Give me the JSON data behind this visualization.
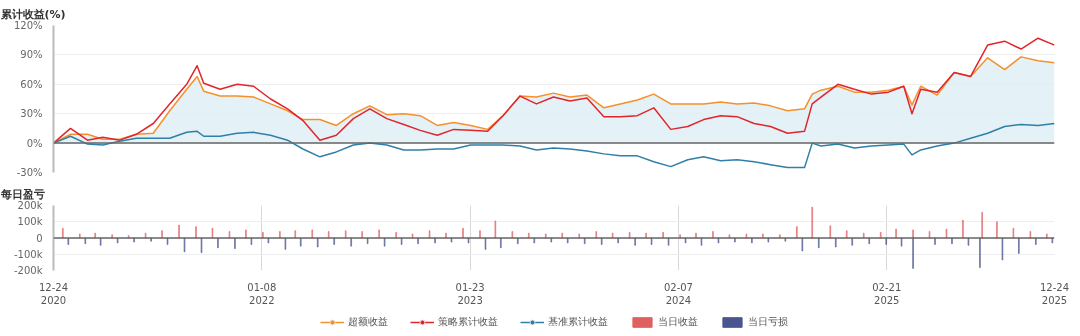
{
  "chart_data": [
    {
      "type": "line",
      "title": "累计收益(%)",
      "x": [
        "2020-12-24",
        "2021-01-24",
        "2021-02-24",
        "2021-03-24",
        "2021-04-24",
        "2021-05-24",
        "2021-06-24",
        "2021-07-24",
        "2021-08-24",
        "2021-09-12",
        "2021-09-24",
        "2021-10-24",
        "2021-11-24",
        "2021-12-24",
        "2022-01-24",
        "2022-02-24",
        "2022-03-24",
        "2022-04-24",
        "2022-05-24",
        "2022-06-24",
        "2022-07-24",
        "2022-08-24",
        "2022-09-24",
        "2022-10-24",
        "2022-11-24",
        "2022-12-24",
        "2023-01-24",
        "2023-02-24",
        "2023-03-24",
        "2023-04-24",
        "2023-05-24",
        "2023-06-24",
        "2023-07-24",
        "2023-08-24",
        "2023-09-24",
        "2023-10-24",
        "2023-11-24",
        "2023-12-24",
        "2024-01-24",
        "2024-02-24",
        "2024-03-24",
        "2024-04-24",
        "2024-05-24",
        "2024-06-24",
        "2024-07-24",
        "2024-08-24",
        "2024-09-24",
        "2024-10-08",
        "2024-10-24",
        "2024-11-24",
        "2024-12-24",
        "2025-01-24",
        "2025-02-24",
        "2025-03-24",
        "2025-04-08",
        "2025-04-24",
        "2025-05-24",
        "2025-06-24",
        "2025-07-24",
        "2025-08-24",
        "2025-09-24",
        "2025-10-24",
        "2025-11-24",
        "2025-12-24"
      ],
      "series": [
        {
          "name": "超额收益",
          "type": "area",
          "color": "#f5902a",
          "values": [
            0,
            9,
            9,
            4,
            4,
            9,
            10,
            33,
            55,
            68,
            53,
            48,
            48,
            47,
            40,
            33,
            24,
            24,
            18,
            30,
            38,
            29,
            30,
            28,
            18,
            21,
            18,
            14,
            28,
            48,
            47,
            51,
            47,
            49,
            36,
            40,
            44,
            50,
            40,
            40,
            40,
            42,
            40,
            41,
            38,
            33,
            35,
            50,
            54,
            58,
            52,
            52,
            54,
            58,
            39,
            58,
            49,
            72,
            68,
            87,
            75,
            88,
            84,
            82
          ]
        },
        {
          "name": "策略累计收益",
          "color": "#e0262b",
          "values": [
            0,
            15,
            3,
            6,
            3,
            9,
            20,
            40,
            60,
            79,
            61,
            55,
            60,
            58,
            45,
            35,
            23,
            3,
            8,
            25,
            35,
            25,
            19,
            13,
            8,
            14,
            13,
            12,
            28,
            48,
            40,
            47,
            43,
            46,
            27,
            27,
            28,
            36,
            14,
            17,
            24,
            28,
            27,
            20,
            17,
            10,
            12,
            40,
            47,
            60,
            55,
            50,
            52,
            58,
            30,
            55,
            52,
            72,
            68,
            100,
            104,
            96,
            107,
            100
          ]
        },
        {
          "name": "基准累计收益",
          "color": "#2f7fa8",
          "values": [
            0,
            7,
            -1,
            -2,
            2,
            5,
            5,
            5,
            11,
            12,
            7,
            7,
            10,
            11,
            8,
            3,
            -6,
            -14,
            -9,
            -2,
            0,
            -2,
            -7,
            -7,
            -6,
            -6,
            -2,
            -2,
            -2,
            -3,
            -7,
            -5,
            -6,
            -8,
            -11,
            -13,
            -13,
            -19,
            -24,
            -17,
            -14,
            -18,
            -17,
            -19,
            -22,
            -25,
            -25,
            0,
            -3,
            -1,
            -5,
            -3,
            -2,
            -1,
            -12,
            -7,
            -3,
            0,
            5,
            10,
            17,
            19,
            18,
            20
          ]
        }
      ],
      "xlim": [
        "2020-12-24",
        "2025-12-24"
      ],
      "xticks": [
        {
          "value": "2020-12-24",
          "label": null
        },
        {
          "value": "2022-01-08",
          "label": null
        },
        {
          "value": "2023-01-23",
          "label": null
        },
        {
          "value": "2024-02-07",
          "label": null
        },
        {
          "value": "2025-02-21",
          "label": null
        },
        {
          "value": "2025-12-24",
          "label": null
        }
      ],
      "ylim": [
        -30,
        120
      ],
      "yticks": [
        {
          "value": -30,
          "label": "-30%"
        },
        {
          "value": 0,
          "label": "0%"
        },
        {
          "value": 30,
          "label": "30%"
        },
        {
          "value": 60,
          "label": "60%"
        },
        {
          "value": 90,
          "label": "90%"
        },
        {
          "value": 120,
          "label": "120%"
        }
      ],
      "grid": "y",
      "tick_labels": "y",
      "legend": "bottom"
    },
    {
      "type": "bar",
      "title": "每日盈亏",
      "series": [
        {
          "name": "当日收益",
          "color": "#e06060",
          "x": [
            "2021-01-10",
            "2021-02-10",
            "2021-03-10",
            "2021-04-10",
            "2021-05-10",
            "2021-06-10",
            "2021-07-10",
            "2021-08-10",
            "2021-09-10",
            "2021-10-10",
            "2021-11-10",
            "2021-12-10",
            "2022-01-10",
            "2022-02-10",
            "2022-03-10",
            "2022-04-10",
            "2022-05-10",
            "2022-06-10",
            "2022-07-10",
            "2022-08-10",
            "2022-09-10",
            "2022-10-10",
            "2022-11-10",
            "2022-12-10",
            "2023-01-10",
            "2023-02-10",
            "2023-03-10",
            "2023-04-10",
            "2023-05-10",
            "2023-06-10",
            "2023-07-10",
            "2023-08-10",
            "2023-09-10",
            "2023-10-10",
            "2023-11-10",
            "2023-12-10",
            "2024-01-10",
            "2024-02-10",
            "2024-03-10",
            "2024-04-10",
            "2024-05-10",
            "2024-06-10",
            "2024-07-10",
            "2024-08-10",
            "2024-09-10",
            "2024-10-08",
            "2024-11-10",
            "2024-12-10",
            "2025-01-10",
            "2025-02-10",
            "2025-03-10",
            "2025-04-10",
            "2025-05-10",
            "2025-06-10",
            "2025-07-10",
            "2025-08-14",
            "2025-09-10",
            "2025-10-10",
            "2025-11-10",
            "2025-12-10"
          ],
          "values": [
            60000,
            25000,
            30000,
            20000,
            15000,
            30000,
            45000,
            80000,
            70000,
            60000,
            40000,
            50000,
            35000,
            40000,
            45000,
            50000,
            40000,
            45000,
            40000,
            50000,
            35000,
            25000,
            45000,
            30000,
            60000,
            45000,
            105000,
            40000,
            30000,
            25000,
            30000,
            25000,
            40000,
            30000,
            35000,
            30000,
            35000,
            20000,
            30000,
            40000,
            20000,
            25000,
            25000,
            20000,
            70000,
            190000,
            75000,
            45000,
            30000,
            35000,
            55000,
            50000,
            40000,
            55000,
            110000,
            158000,
            100000,
            60000,
            40000,
            25000
          ]
        },
        {
          "name": "当日亏损",
          "color": "#4a5590",
          "x": [
            "2021-01-20",
            "2021-02-20",
            "2021-03-20",
            "2021-04-20",
            "2021-05-20",
            "2021-06-20",
            "2021-07-20",
            "2021-08-20",
            "2021-09-20",
            "2021-10-20",
            "2021-11-20",
            "2021-12-20",
            "2022-01-20",
            "2022-02-20",
            "2022-03-20",
            "2022-04-20",
            "2022-05-20",
            "2022-06-20",
            "2022-07-20",
            "2022-08-20",
            "2022-09-20",
            "2022-10-20",
            "2022-11-20",
            "2022-12-20",
            "2023-01-20",
            "2023-02-20",
            "2023-03-20",
            "2023-04-20",
            "2023-05-20",
            "2023-06-20",
            "2023-07-20",
            "2023-08-20",
            "2023-09-20",
            "2023-10-20",
            "2023-11-20",
            "2023-12-20",
            "2024-01-20",
            "2024-02-20",
            "2024-03-20",
            "2024-04-20",
            "2024-05-20",
            "2024-06-20",
            "2024-07-20",
            "2024-08-20",
            "2024-09-20",
            "2024-10-20",
            "2024-11-20",
            "2024-12-20",
            "2025-01-20",
            "2025-02-20",
            "2025-03-20",
            "2025-04-10",
            "2025-05-20",
            "2025-06-20",
            "2025-07-20",
            "2025-08-10",
            "2025-09-20",
            "2025-10-20",
            "2025-11-20",
            "2025-12-20"
          ],
          "values": [
            -40000,
            -35000,
            -45000,
            -30000,
            -25000,
            -20000,
            -40000,
            -85000,
            -90000,
            -60000,
            -65000,
            -40000,
            -30000,
            -70000,
            -50000,
            -55000,
            -40000,
            -50000,
            -35000,
            -50000,
            -40000,
            -35000,
            -30000,
            -25000,
            -30000,
            -70000,
            -60000,
            -35000,
            -30000,
            -25000,
            -30000,
            -35000,
            -40000,
            -30000,
            -45000,
            -40000,
            -45000,
            -30000,
            -45000,
            -30000,
            -25000,
            -30000,
            -25000,
            -20000,
            -80000,
            -60000,
            -55000,
            -45000,
            -35000,
            -40000,
            -50000,
            -187000,
            -40000,
            -35000,
            -45000,
            -182000,
            -135000,
            -95000,
            -40000,
            -30000
          ]
        }
      ],
      "xlim": [
        "2020-12-24",
        "2025-12-24"
      ],
      "xticks": [
        {
          "value": "2020-12-24",
          "label": "12-24\n2020"
        },
        {
          "value": "2022-01-08",
          "label": "01-08\n2022"
        },
        {
          "value": "2023-01-23",
          "label": "01-23\n2023"
        },
        {
          "value": "2024-02-07",
          "label": "02-07\n2024"
        },
        {
          "value": "2025-02-21",
          "label": "02-21\n2025"
        },
        {
          "value": "2025-12-24",
          "label": "12-24\n2025"
        }
      ],
      "ylim": [
        -200000,
        200000
      ],
      "yticks": [
        {
          "value": -200000,
          "label": "-200k"
        },
        {
          "value": -100000,
          "label": "-100k"
        },
        {
          "value": 0,
          "label": "0"
        },
        {
          "value": 100000,
          "label": "100k"
        },
        {
          "value": 200000,
          "label": "200k"
        }
      ],
      "grid": true,
      "legend": "bottom"
    }
  ]
}
